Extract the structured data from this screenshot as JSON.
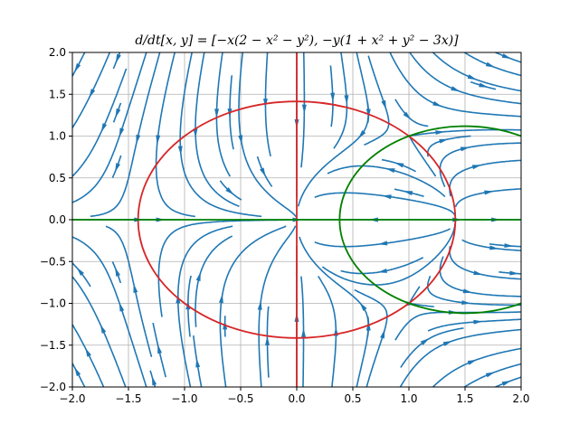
{
  "chart_data": {
    "type": "streamplot",
    "title": "d/dt[x, y] = [−x(2 − x² − y²), −y(1 + x² + y² − 3x)]",
    "xlabel": "",
    "ylabel": "",
    "xlim": [
      -2.0,
      2.0
    ],
    "ylim": [
      -2.0,
      2.0
    ],
    "x_ticks": [
      "−2.0",
      "−1.5",
      "−1.0",
      "−0.5",
      "0.0",
      "0.5",
      "1.0",
      "1.5",
      "2.0"
    ],
    "y_ticks": [
      "−2.0",
      "−1.5",
      "−1.0",
      "−0.5",
      "0.0",
      "0.5",
      "1.0",
      "1.5",
      "2.0"
    ],
    "grid": true,
    "vector_field": {
      "dx": "-x*(2 - x^2 - y^2)",
      "dy": "-y*(1 + x^2 + y^2 - 3*x)"
    },
    "nullclines": [
      {
        "type": "circle",
        "center": [
          0.0,
          0.0
        ],
        "radius": 1.414,
        "color": "#d62728"
      },
      {
        "type": "vline",
        "x": 0.0,
        "color": "#d62728"
      },
      {
        "type": "circle",
        "center": [
          1.5,
          0.0
        ],
        "radius": 1.118,
        "color": "#008000"
      },
      {
        "type": "hline",
        "y": 0.0,
        "color": "#008000"
      }
    ],
    "colors": {
      "stream": "#1f77b4",
      "nullcline_x": "#d62728",
      "nullcline_y": "#008000",
      "grid": "#b0b0b0"
    }
  }
}
